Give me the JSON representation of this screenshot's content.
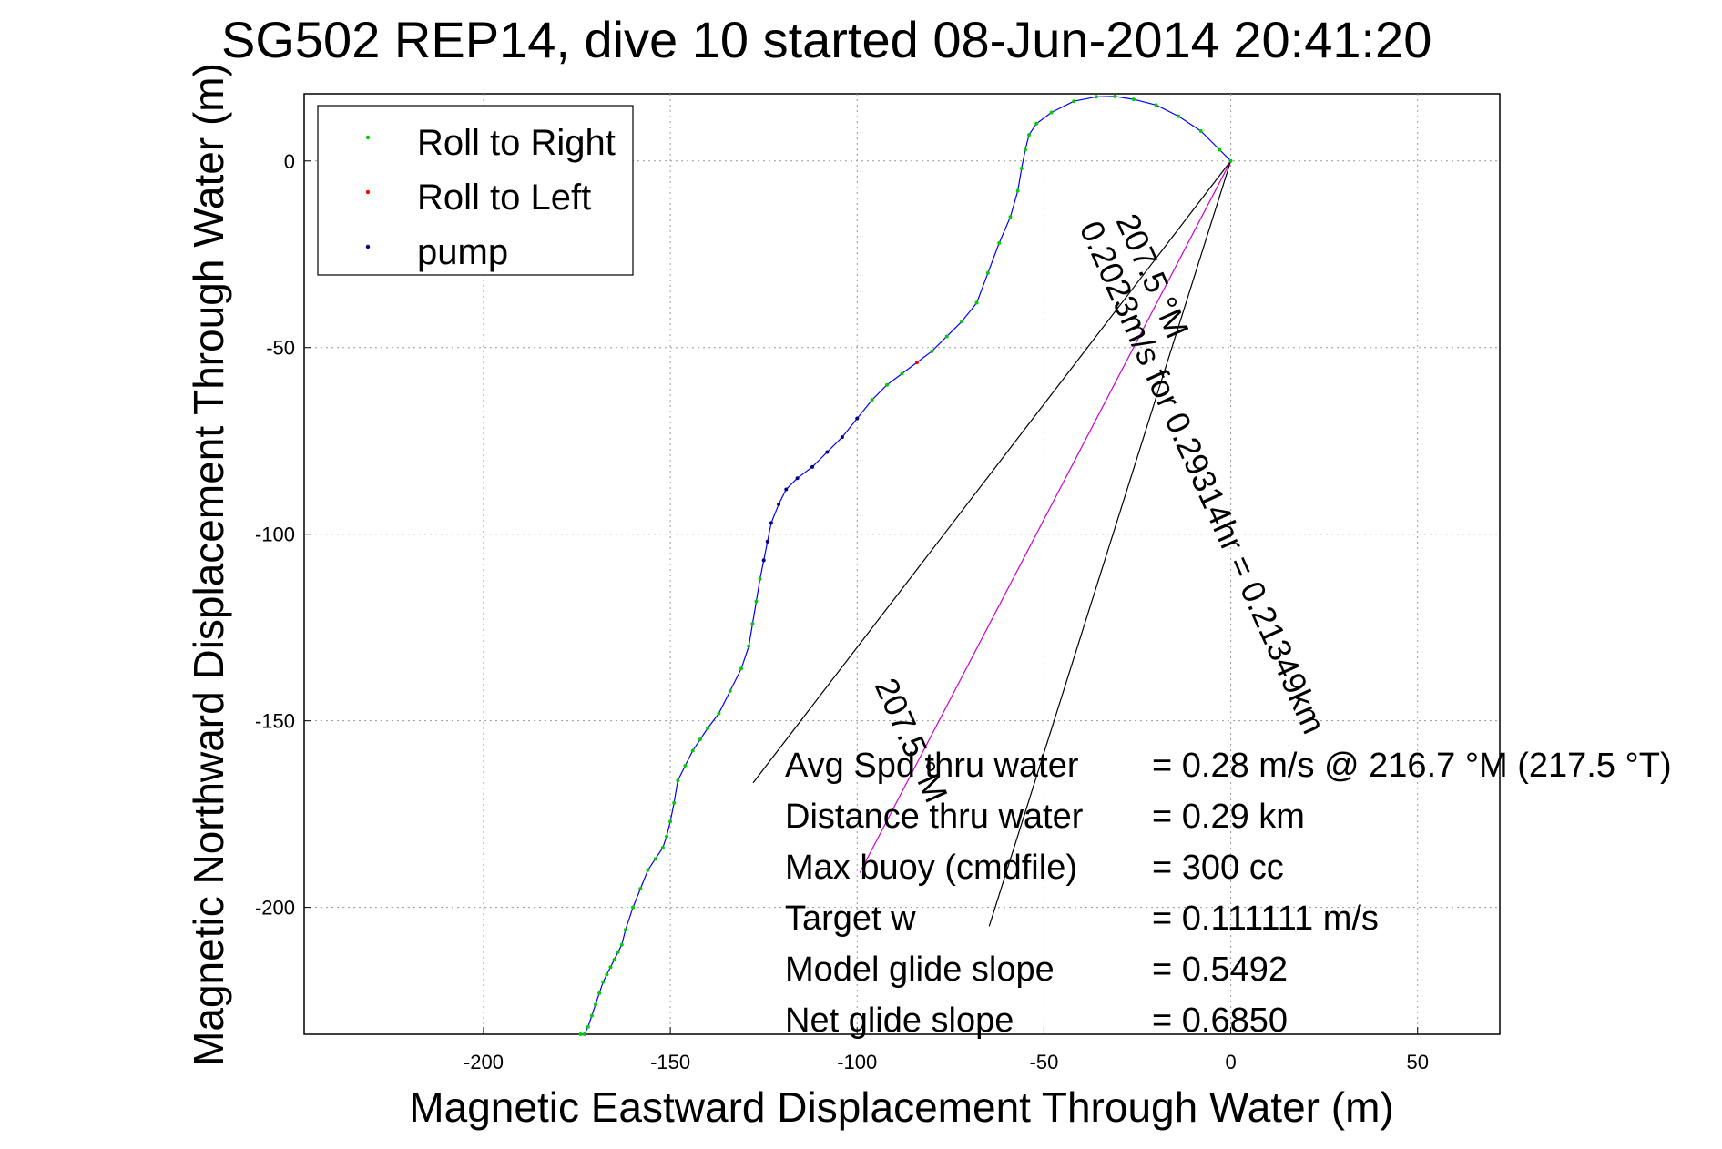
{
  "chart_data": {
    "type": "scatter",
    "title": "SG502 REP14, dive 10 started 08-Jun-2014 20:41:20",
    "xlabel": "Magnetic Eastward Displacement Through Water (m)",
    "ylabel": "Magnetic Northward Displacement Through Water (m)",
    "xlim": [
      -248,
      72
    ],
    "ylim": [
      -234,
      18
    ],
    "xticks": [
      -200,
      -150,
      -100,
      -50,
      0,
      50
    ],
    "yticks": [
      0,
      -50,
      -100,
      -150,
      -200
    ],
    "grid": true,
    "legend_position": "top-left",
    "colors": {
      "track": "#0000ff",
      "roll_right": "#00cc00",
      "roll_left": "#ff0000",
      "pump": "#000080",
      "rays": "#000000",
      "ray_mid": "#cc00cc"
    },
    "track": {
      "x": [
        0,
        -3,
        -8,
        -14,
        -20,
        -26,
        -31,
        -36,
        -42,
        -48,
        -52,
        -54,
        -55,
        -56,
        -57,
        -59,
        -62,
        -65,
        -68,
        -72,
        -76,
        -80,
        -84,
        -88,
        -92,
        -96,
        -100,
        -104,
        -108,
        -112,
        -116,
        -119,
        -121,
        -123,
        -124,
        -125,
        -126,
        -127,
        -128,
        -129,
        -131,
        -134,
        -137,
        -140,
        -142,
        -144,
        -146,
        -148,
        -149,
        -150,
        -151,
        -152,
        -154,
        -156,
        -158,
        -160,
        -162,
        -163,
        -164,
        -165,
        -166,
        -167,
        -168,
        -169,
        -170,
        -171,
        -172,
        -173,
        -174
      ],
      "y": [
        0,
        3,
        8,
        12,
        15,
        16.5,
        17.3,
        17.2,
        16,
        13,
        10,
        7,
        3,
        -2,
        -8,
        -15,
        -22,
        -30,
        -38,
        -43,
        -47,
        -51,
        -54,
        -57,
        -60,
        -64,
        -69,
        -74,
        -78,
        -82,
        -85,
        -88,
        -92,
        -97,
        -102,
        -107,
        -112,
        -118,
        -124,
        -130,
        -136,
        -142,
        -148,
        -152,
        -155,
        -158,
        -162,
        -166,
        -172,
        -177,
        -181,
        -184,
        -187,
        -190,
        -195,
        -200,
        -206,
        -210,
        -212,
        -214,
        -216,
        -218,
        -220,
        -223,
        -226,
        -229,
        -232,
        -234,
        -234
      ]
    },
    "pump_range_x": [
      -125,
      -99
    ],
    "roll_left_range_x": [
      -85,
      -82
    ],
    "rays": [
      {
        "angle_deg": 217.5,
        "length_m": 210
      },
      {
        "angle_deg": 207.5,
        "length_m": 215
      },
      {
        "angle_deg": 197.5,
        "length_m": 215
      }
    ],
    "ray_labels": [
      "207.5 °M",
      "0.2023m/s for 0.29314hr = 0.21349km",
      "207.5 °M"
    ]
  },
  "legend": {
    "items": [
      {
        "label": "Roll to Right",
        "color": "#00cc00"
      },
      {
        "label": "Roll to Left",
        "color": "#ff0000"
      },
      {
        "label": "pump",
        "color": "#000080"
      }
    ]
  },
  "annotation": {
    "rows": [
      {
        "label": "Avg Spd thru water",
        "value": "=  0.28 m/s @ 216.7 °M (217.5 °T)"
      },
      {
        "label": "Distance thru water",
        "value": "=  0.29 km"
      },
      {
        "label": "Max buoy (cmdfile)",
        "value": "= 300 cc"
      },
      {
        "label": "Target w",
        "value": "= 0.111111 m/s"
      },
      {
        "label": "Model glide slope",
        "value": "= 0.5492"
      },
      {
        "label": "Net glide slope",
        "value": "= 0.6850"
      }
    ]
  }
}
